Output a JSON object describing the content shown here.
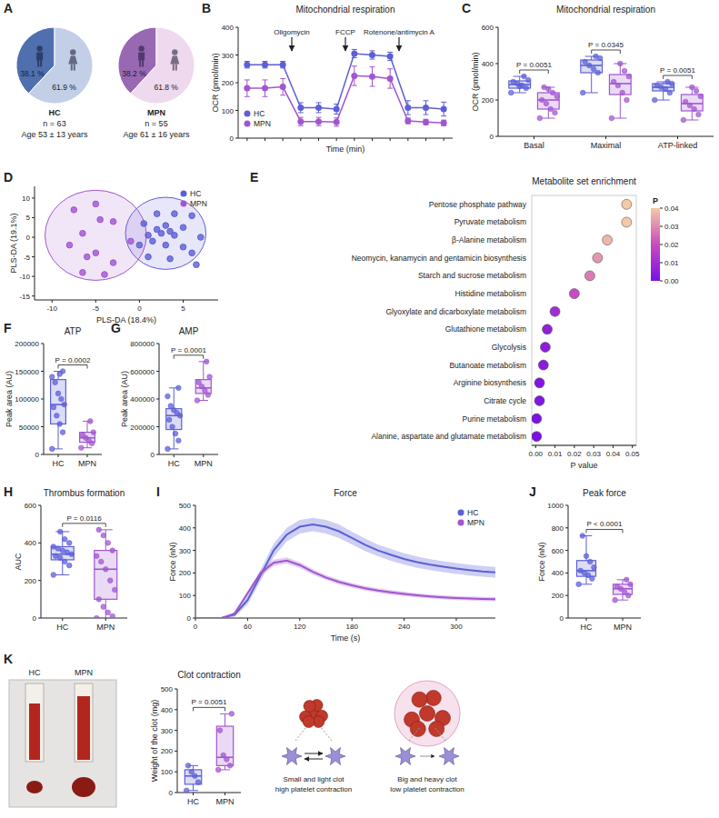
{
  "chart_data": [
    {
      "type": "pie",
      "panel": "A",
      "values": [
        38.1,
        61.9
      ],
      "value_labels": [
        "38.1 %",
        "61.9 %"
      ],
      "colors": [
        "#4f6fae",
        "#c3cfe6"
      ],
      "caption": [
        "HC",
        "n = 63",
        "Age 53 ± 13 years"
      ]
    },
    {
      "type": "pie",
      "values": [
        38.2,
        61.8
      ],
      "value_labels": [
        "38.2 %",
        "61.8 %"
      ],
      "colors": [
        "#9968b3",
        "#efd9ee"
      ],
      "caption": [
        "MPN",
        "n = 55",
        "Age 61 ± 16 years"
      ]
    },
    {
      "type": "line",
      "panel": "B",
      "title": "Mitochondrial respiration",
      "xlabel": "Time (min)",
      "ylabel": "OCR (pmol/min)",
      "x": [
        1,
        2,
        3,
        4,
        5,
        6,
        7,
        8,
        9,
        10,
        11,
        12
      ],
      "xlim": [
        0.5,
        12.5
      ],
      "xticks": [
        1,
        2,
        3,
        4,
        5,
        6,
        7,
        8,
        9,
        10,
        11,
        12
      ],
      "ylim": [
        0,
        400
      ],
      "yticks": [
        0,
        100,
        200,
        300,
        400
      ],
      "tick_labels": "y",
      "legend": "lower left",
      "annotations": [
        {
          "text": "Oligomycin",
          "x": 3.5
        },
        {
          "text": "FCCP",
          "x": 6.5
        },
        {
          "text": "Rotenone/antimycin A",
          "x": 9.5
        }
      ],
      "series": [
        {
          "name": "HC",
          "color": "#5c5fd6",
          "marker": "circle",
          "values": [
            265,
            265,
            265,
            110,
            110,
            105,
            305,
            300,
            295,
            110,
            110,
            105
          ],
          "errors": [
            12,
            12,
            12,
            18,
            18,
            18,
            15,
            15,
            15,
            25,
            25,
            25
          ]
        },
        {
          "name": "MPN",
          "color": "#a155d0",
          "marker": "circle",
          "values": [
            180,
            180,
            185,
            60,
            60,
            58,
            225,
            222,
            215,
            62,
            58,
            55
          ],
          "errors": [
            30,
            30,
            30,
            15,
            15,
            15,
            35,
            35,
            35,
            10,
            10,
            10
          ]
        }
      ]
    },
    {
      "type": "box",
      "panel": "C",
      "title": "Mitochondrial respiration",
      "ylabel": "OCR (pmol/min)",
      "categories": [
        "Basal",
        "Maximal",
        "ATP-linked"
      ],
      "ylim": [
        0,
        600
      ],
      "yticks": [
        0,
        200,
        400,
        600
      ],
      "p_values": [
        "P = 0.0051",
        "P = 0.0345",
        "P = 0.0051"
      ],
      "series": [
        {
          "color": "#5c5fd6",
          "boxes": [
            {
              "min": 240,
              "q1": 265,
              "median": 285,
              "q3": 305,
              "max": 330,
              "points": [
                240,
                265,
                280,
                290,
                300,
                310,
                330,
                275
              ]
            },
            {
              "min": 240,
              "q1": 350,
              "median": 390,
              "q3": 420,
              "max": 440,
              "points": [
                240,
                350,
                370,
                390,
                410,
                430,
                440
              ]
            },
            {
              "min": 200,
              "q1": 250,
              "median": 270,
              "q3": 290,
              "max": 300,
              "points": [
                200,
                240,
                260,
                270,
                280,
                290,
                300
              ]
            }
          ]
        },
        {
          "color": "#a155d0",
          "boxes": [
            {
              "min": 100,
              "q1": 150,
              "median": 200,
              "q3": 240,
              "max": 270,
              "points": [
                100,
                130,
                150,
                180,
                200,
                220,
                240,
                260,
                270
              ]
            },
            {
              "min": 100,
              "q1": 230,
              "median": 290,
              "q3": 340,
              "max": 400,
              "points": [
                100,
                200,
                240,
                280,
                300,
                330,
                360,
                400
              ]
            },
            {
              "min": 90,
              "q1": 140,
              "median": 180,
              "q3": 230,
              "max": 270,
              "points": [
                90,
                120,
                150,
                170,
                190,
                220,
                250,
                270
              ]
            }
          ]
        }
      ]
    },
    {
      "type": "scatter",
      "panel": "D",
      "xlabel": "PLS-DA (18.4%)",
      "ylabel": "PLS-DA (19.1%)",
      "xlim": [
        -12,
        9
      ],
      "xticks": [
        -10,
        -5,
        0,
        5
      ],
      "ylim": [
        -16,
        13
      ],
      "yticks": [
        -15,
        -10,
        -5,
        0,
        5,
        10
      ],
      "legend": "upper right",
      "series": [
        {
          "name": "HC",
          "color": "#5c5fd6",
          "x": [
            2,
            4,
            6,
            0.5,
            3,
            5,
            2,
            3.5,
            1,
            2.5,
            4,
            7,
            1.5,
            3,
            5,
            6,
            1,
            3.5,
            6.5,
            0
          ],
          "values": [
            6,
            6,
            5.5,
            3.5,
            3,
            2.5,
            2,
            1.5,
            0.5,
            1,
            0.5,
            0,
            -1,
            -2,
            -2.5,
            -4,
            -5,
            -5.5,
            -7,
            -2
          ],
          "ellipse": {
            "cx": 3,
            "cy": 1,
            "rx": 4.6,
            "ry": 9.2
          }
        },
        {
          "name": "MPN",
          "color": "#a155d0",
          "x": [
            -5,
            -7.5,
            -4.5,
            -3,
            -6.5,
            -1,
            -8,
            -5,
            -6,
            -3,
            -6.5,
            -4
          ],
          "values": [
            8.5,
            7,
            4.5,
            4,
            1,
            -1,
            -2,
            -4,
            -5,
            -6.5,
            -9,
            -9.5
          ],
          "ellipse": {
            "cx": -5,
            "cy": 0.5,
            "rx": 5.8,
            "ry": 11.5
          }
        }
      ]
    },
    {
      "type": "dot",
      "panel": "E",
      "title": "Metabolite set enrichment",
      "xlabel": "P value",
      "categories": [
        "Pentose phosphate pathway",
        "Pyruvate metabolism",
        "β-Alanine metabolism",
        "Neomycin, kanamycin and gentamicin biosynthesis",
        "Starch and sucrose metabolism",
        "Histidine metabolism",
        "Glyoxylate and dicarboxylate metabolism",
        "Glutathione metabolism",
        "Glycolysis",
        "Butanoate metabolism",
        "Arginine biosynthesis",
        "Citrate cycle",
        "Purine metabolism",
        "Alanine, aspartate and glutamate metabolism"
      ],
      "values": [
        0.047,
        0.047,
        0.037,
        0.032,
        0.028,
        0.02,
        0.01,
        0.006,
        0.005,
        0.004,
        0.002,
        0.002,
        0.0005,
        0.0005
      ],
      "xlim": [
        -0.002,
        0.052
      ],
      "xticks": [
        {
          "value": 0,
          "label": "0.00"
        },
        {
          "value": 0.01,
          "label": "0.01"
        },
        {
          "value": 0.02,
          "label": "0.02"
        },
        {
          "value": 0.03,
          "label": "0.03"
        },
        {
          "value": 0.04,
          "label": "0.04"
        },
        {
          "value": 0.05,
          "label": "0.05"
        }
      ],
      "colorbar": {
        "title": "P",
        "range": [
          0,
          0.04
        ],
        "ticks": [
          {
            "value": 0.04,
            "label": "0.04"
          },
          {
            "value": 0.03,
            "label": "0.03"
          },
          {
            "value": 0.02,
            "label": "0.02"
          },
          {
            "value": 0.01,
            "label": "0.01"
          },
          {
            "value": 0,
            "label": "0.00"
          }
        ],
        "colors": [
          "#7b0fe6",
          "#c94bbf",
          "#f4c9a6"
        ]
      }
    },
    {
      "type": "box",
      "panel": "F",
      "title": "ATP",
      "ylabel": "Peak area (AU)",
      "categories": [
        "HC",
        "MPN"
      ],
      "ylim": [
        0,
        200000
      ],
      "yticks": [
        0,
        50000,
        100000,
        150000,
        200000
      ],
      "p_values": [
        "P = 0.0002"
      ],
      "series": [
        {
          "colors": [
            "#5c5fd6",
            "#a155d0"
          ],
          "boxes": [
            {
              "min": 10000,
              "q1": 55000,
              "median": 90000,
              "q3": 135000,
              "max": 150000,
              "points": [
                10000,
                40000,
                55000,
                70000,
                85000,
                90000,
                100000,
                110000,
                130000,
                140000,
                150000,
                145000
              ]
            },
            {
              "min": 12000,
              "q1": 22000,
              "median": 30000,
              "q3": 40000,
              "max": 60000,
              "points": [
                12000,
                20000,
                25000,
                30000,
                35000,
                40000,
                60000
              ]
            }
          ]
        }
      ]
    },
    {
      "type": "box",
      "panel": "G",
      "title": "AMP",
      "ylabel": "Peak area (AU)",
      "categories": [
        "HC",
        "MPN"
      ],
      "ylim": [
        0,
        800000
      ],
      "yticks": [
        0,
        200000,
        400000,
        600000,
        800000
      ],
      "p_values": [
        "P = 0.0001"
      ],
      "series": [
        {
          "colors": [
            "#5c5fd6",
            "#a155d0"
          ],
          "boxes": [
            {
              "min": 40000,
              "q1": 180000,
              "median": 280000,
              "q3": 330000,
              "max": 480000,
              "points": [
                40000,
                100000,
                150000,
                200000,
                250000,
                280000,
                300000,
                320000,
                350000,
                420000,
                480000
              ]
            },
            {
              "min": 390000,
              "q1": 440000,
              "median": 480000,
              "q3": 540000,
              "max": 670000,
              "points": [
                390000,
                430000,
                460000,
                490000,
                520000,
                560000,
                670000
              ]
            }
          ]
        }
      ]
    },
    {
      "type": "box",
      "panel": "H",
      "title": "Thrombus formation",
      "ylabel": "AUC",
      "categories": [
        "HC",
        "MPN"
      ],
      "ylim": [
        0,
        600
      ],
      "yticks": [
        0,
        200,
        400,
        600
      ],
      "p_values": [
        "P = 0.0116"
      ],
      "series": [
        {
          "colors": [
            "#5c5fd6",
            "#a155d0"
          ],
          "boxes": [
            {
              "min": 230,
              "q1": 310,
              "median": 340,
              "q3": 380,
              "max": 460,
              "points": [
                230,
                280,
                300,
                320,
                330,
                340,
                350,
                360,
                370,
                380,
                400,
                420,
                460
              ]
            },
            {
              "min": 0,
              "q1": 100,
              "median": 260,
              "q3": 360,
              "max": 470,
              "points": [
                0,
                10,
                30,
                60,
                100,
                150,
                200,
                260,
                300,
                330,
                360,
                400,
                440,
                470
              ]
            }
          ]
        }
      ]
    },
    {
      "type": "line",
      "panel": "I",
      "title": "Force",
      "xlabel": "Time (s)",
      "ylabel": "Force (nN)",
      "x": [
        0,
        15,
        30,
        45,
        60,
        75,
        90,
        105,
        120,
        135,
        150,
        165,
        180,
        195,
        210,
        225,
        240,
        255,
        270,
        285,
        300,
        315,
        330,
        345
      ],
      "xlim": [
        0,
        345
      ],
      "xticks": [
        0,
        60,
        120,
        180,
        240,
        300
      ],
      "ylim": [
        0,
        500
      ],
      "yticks": [
        0,
        100,
        200,
        300,
        400,
        500
      ],
      "legend": "upper right",
      "series": [
        {
          "name": "HC",
          "color": "#5c5fd6",
          "values": [
            0,
            0,
            0,
            15,
            80,
            190,
            300,
            370,
            405,
            415,
            405,
            385,
            355,
            325,
            300,
            280,
            262,
            248,
            237,
            228,
            220,
            213,
            207,
            203
          ],
          "errors": [
            0,
            0,
            0,
            10,
            20,
            25,
            30,
            30,
            30,
            30,
            30,
            30,
            28,
            28,
            26,
            26,
            25,
            25,
            24,
            24,
            24,
            24,
            24,
            24
          ]
        },
        {
          "name": "MPN",
          "color": "#a155d0",
          "values": [
            0,
            0,
            0,
            20,
            110,
            200,
            245,
            255,
            235,
            205,
            180,
            160,
            145,
            132,
            122,
            114,
            107,
            101,
            96,
            92,
            89,
            87,
            85,
            84
          ],
          "errors": [
            0,
            0,
            0,
            6,
            10,
            12,
            14,
            14,
            13,
            12,
            11,
            11,
            10,
            10,
            10,
            10,
            10,
            9,
            9,
            9,
            9,
            9,
            9,
            9
          ]
        }
      ]
    },
    {
      "type": "box",
      "panel": "J",
      "title": "Peak force",
      "ylabel": "Force (nN)",
      "categories": [
        "HC",
        "MPN"
      ],
      "ylim": [
        0,
        1000
      ],
      "yticks": [
        0,
        200,
        400,
        600,
        800,
        1000
      ],
      "p_values": [
        "P < 0.0001"
      ],
      "series": [
        {
          "colors": [
            "#5c5fd6",
            "#a155d0"
          ],
          "boxes": [
            {
              "min": 300,
              "q1": 370,
              "median": 420,
              "q3": 510,
              "max": 730,
              "points": [
                300,
                350,
                380,
                400,
                420,
                450,
                500,
                550,
                730
              ]
            },
            {
              "min": 160,
              "q1": 210,
              "median": 260,
              "q3": 300,
              "max": 340,
              "points": [
                160,
                200,
                230,
                260,
                280,
                300,
                340
              ]
            }
          ]
        }
      ]
    },
    {
      "type": "box",
      "panel": "K",
      "title": "Clot contraction",
      "ylabel": "Weight of the clot (mg)",
      "categories": [
        "HC",
        "MPN"
      ],
      "ylim": [
        0,
        500
      ],
      "yticks": [
        0,
        100,
        200,
        300,
        400,
        500
      ],
      "p_values": [
        "P = 0.0051"
      ],
      "series": [
        {
          "colors": [
            "#5c5fd6",
            "#a155d0"
          ],
          "boxes": [
            {
              "min": 10,
              "q1": 40,
              "median": 80,
              "q3": 110,
              "max": 130,
              "points": [
                10,
                50,
                80,
                100,
                130
              ]
            },
            {
              "min": 110,
              "q1": 130,
              "median": 170,
              "q3": 320,
              "max": 380,
              "points": [
                110,
                130,
                160,
                180,
                300,
                380
              ]
            }
          ]
        }
      ],
      "photo_labels": [
        "HC",
        "MPN"
      ],
      "schematic_labels": [
        [
          "Small and light clot",
          "high platelet contraction"
        ],
        [
          "Big and heavy clot",
          "low platelet contraction"
        ]
      ]
    }
  ]
}
